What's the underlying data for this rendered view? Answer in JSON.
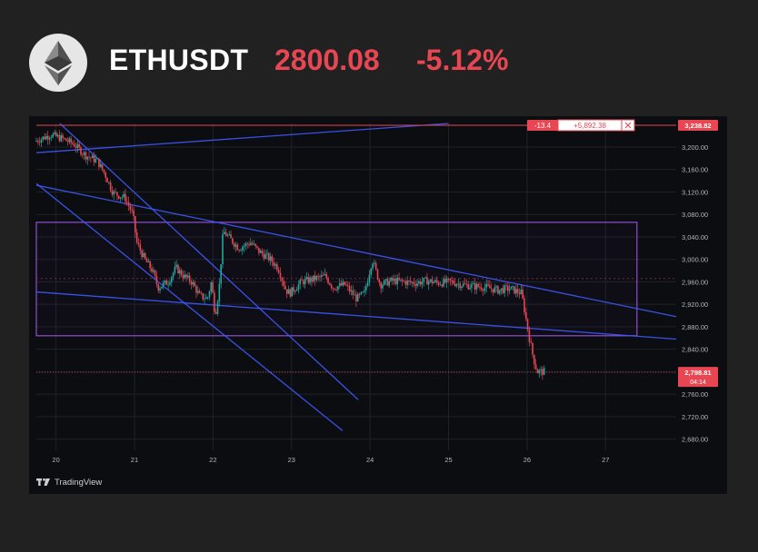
{
  "header": {
    "symbol": "ETHUSDT",
    "price": "2800.08",
    "change": "-5.12%",
    "logo_icon": "ethereum-icon"
  },
  "colors": {
    "down": "#e84652",
    "up": "#26a69a",
    "trendline": "#3d5afe",
    "channel": "#8e4fd0",
    "grid": "#1e2229",
    "axis_text": "#b2b5be"
  },
  "footer": {
    "brand": "TradingView",
    "brand_icon": "tradingview-icon"
  },
  "chart_data": {
    "type": "candlestick",
    "x_ticks": [
      "20",
      "21",
      "22",
      "23",
      "24",
      "25",
      "26",
      "27"
    ],
    "y_ticks": [
      "3,200.00",
      "3,160.00",
      "3,120.00",
      "3,080.00",
      "3,040.00",
      "3,000.00",
      "2,960.00",
      "2,920.00",
      "2,880.00",
      "2,840.00",
      "2,800.00",
      "2,760.00",
      "2,720.00",
      "2,680.00"
    ],
    "ylim": [
      2660,
      3242
    ],
    "xlim": [
      19.75,
      27.9
    ],
    "price_path": [
      [
        19.75,
        3210
      ],
      [
        19.95,
        3222
      ],
      [
        20.1,
        3215
      ],
      [
        20.25,
        3205
      ],
      [
        20.4,
        3185
      ],
      [
        20.55,
        3175
      ],
      [
        20.65,
        3150
      ],
      [
        20.75,
        3118
      ],
      [
        20.9,
        3110
      ],
      [
        21.0,
        3080
      ],
      [
        21.05,
        3030
      ],
      [
        21.15,
        3000
      ],
      [
        21.25,
        2980
      ],
      [
        21.32,
        2950
      ],
      [
        21.45,
        2960
      ],
      [
        21.55,
        2985
      ],
      [
        21.65,
        2970
      ],
      [
        21.75,
        2960
      ],
      [
        21.85,
        2935
      ],
      [
        21.95,
        2930
      ],
      [
        22.0,
        2960
      ],
      [
        22.05,
        2900
      ],
      [
        22.1,
        2950
      ],
      [
        22.15,
        3050
      ],
      [
        22.25,
        3035
      ],
      [
        22.35,
        3020
      ],
      [
        22.5,
        3030
      ],
      [
        22.6,
        3015
      ],
      [
        22.75,
        3000
      ],
      [
        22.85,
        2985
      ],
      [
        22.95,
        2945
      ],
      [
        23.0,
        2940
      ],
      [
        23.15,
        2960
      ],
      [
        23.3,
        2965
      ],
      [
        23.45,
        2970
      ],
      [
        23.55,
        2950
      ],
      [
        23.7,
        2955
      ],
      [
        23.85,
        2930
      ],
      [
        23.95,
        2940
      ],
      [
        24.05,
        3000
      ],
      [
        24.15,
        2955
      ],
      [
        24.3,
        2962
      ],
      [
        24.45,
        2960
      ],
      [
        24.6,
        2958
      ],
      [
        24.75,
        2962
      ],
      [
        24.9,
        2958
      ],
      [
        25.05,
        2960
      ],
      [
        25.2,
        2955
      ],
      [
        25.35,
        2952
      ],
      [
        25.5,
        2950
      ],
      [
        25.65,
        2945
      ],
      [
        25.8,
        2948
      ],
      [
        25.95,
        2940
      ],
      [
        26.0,
        2900
      ],
      [
        26.05,
        2860
      ],
      [
        26.1,
        2825
      ],
      [
        26.15,
        2800
      ],
      [
        26.22,
        2800
      ]
    ],
    "horizontal_line": {
      "price": 3238.82,
      "label": "3,238.82"
    },
    "position_labels": [
      "-13.4",
      "+5,892.38"
    ],
    "close_icon": "close-icon",
    "current_price": {
      "label": "2,798.81",
      "countdown": "04:14"
    },
    "dotted_level": 2966,
    "range_box": {
      "x0": 19.75,
      "x1": 27.4,
      "top": 3066,
      "bottom": 2864
    },
    "trendlines": [
      {
        "from": [
          19.75,
          3190
        ],
        "to": [
          25.0,
          3242
        ]
      },
      {
        "from": [
          20.05,
          3242
        ],
        "to": [
          23.85,
          2750
        ]
      },
      {
        "from": [
          19.75,
          3135
        ],
        "to": [
          23.65,
          2695
        ]
      },
      {
        "from": [
          19.75,
          3132
        ],
        "to": [
          27.9,
          2898
        ]
      },
      {
        "from": [
          19.75,
          2942
        ],
        "to": [
          27.9,
          2858
        ]
      }
    ]
  }
}
